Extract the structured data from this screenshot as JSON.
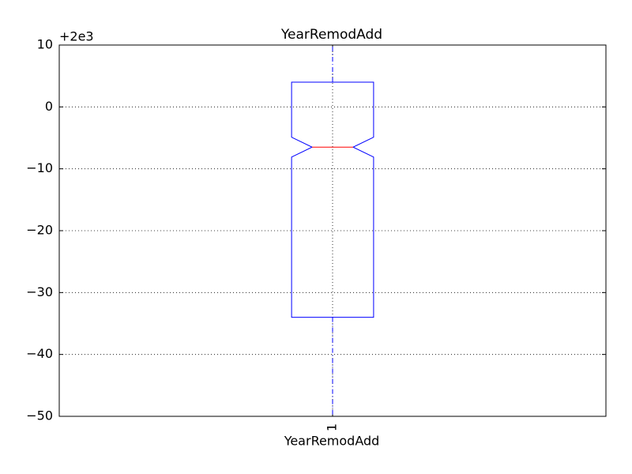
{
  "chart_data": {
    "type": "box",
    "title": "YearRemodAdd",
    "xlabel": "YearRemodAdd",
    "y_offset_label": "+2e3",
    "categories": [
      "1"
    ],
    "boxes": [
      {
        "whislo": -50,
        "q1": -34,
        "notch_lo": -8.1,
        "med": -6.5,
        "notch_hi": -4.9,
        "q3": 4,
        "whishi": 10
      }
    ],
    "box_color": "#0000ff",
    "median_color": "#ff0000",
    "ylim": [
      -50,
      10
    ],
    "yticks": [
      {
        "value": -50,
        "label": "−50"
      },
      {
        "value": -40,
        "label": "−40"
      },
      {
        "value": -30,
        "label": "−30"
      },
      {
        "value": -20,
        "label": "−20"
      },
      {
        "value": -10,
        "label": "−10"
      },
      0,
      10
    ],
    "grid": true
  }
}
